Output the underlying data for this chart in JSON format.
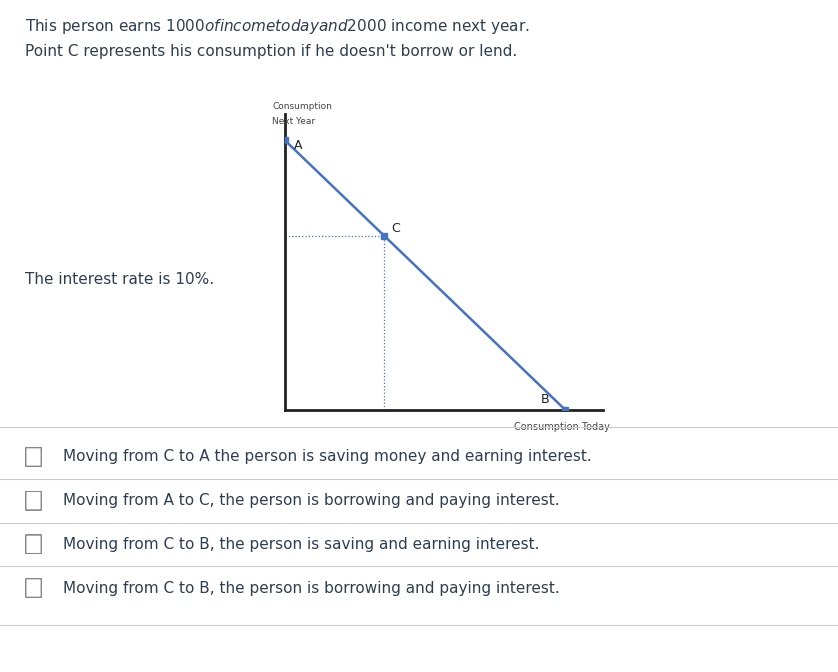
{
  "title_line1": "This person earns $1000 of income today and $2000 income next year.",
  "title_line2": "Point C represents his consumption if he doesn't borrow or lend.",
  "interest_rate_text": "The interest rate is 10%.",
  "ylabel_line1": "Consumption",
  "ylabel_line2": "Next Year",
  "xlabel": "Consumption Today",
  "point_A": [
    0,
    3100
  ],
  "point_B": [
    2818,
    0
  ],
  "point_C": [
    1000,
    2000
  ],
  "line_color": "#4472c4",
  "line_width": 1.8,
  "dot_color": "#4472c4",
  "dot_size": 5,
  "axis_color": "#222222",
  "dotted_line_color": "#4472c4",
  "text_color": "#2d3e50",
  "options": [
    "Moving from C to A the person is saving money and earning interest.",
    "Moving from A to C, the person is borrowing and paying interest.",
    "Moving from C to B, the person is saving and earning interest.",
    "Moving from C to B, the person is borrowing and paying interest."
  ],
  "background_color": "#ffffff",
  "xlim": [
    0,
    3200
  ],
  "ylim": [
    0,
    3400
  ],
  "fig_width": 8.38,
  "fig_height": 6.72
}
